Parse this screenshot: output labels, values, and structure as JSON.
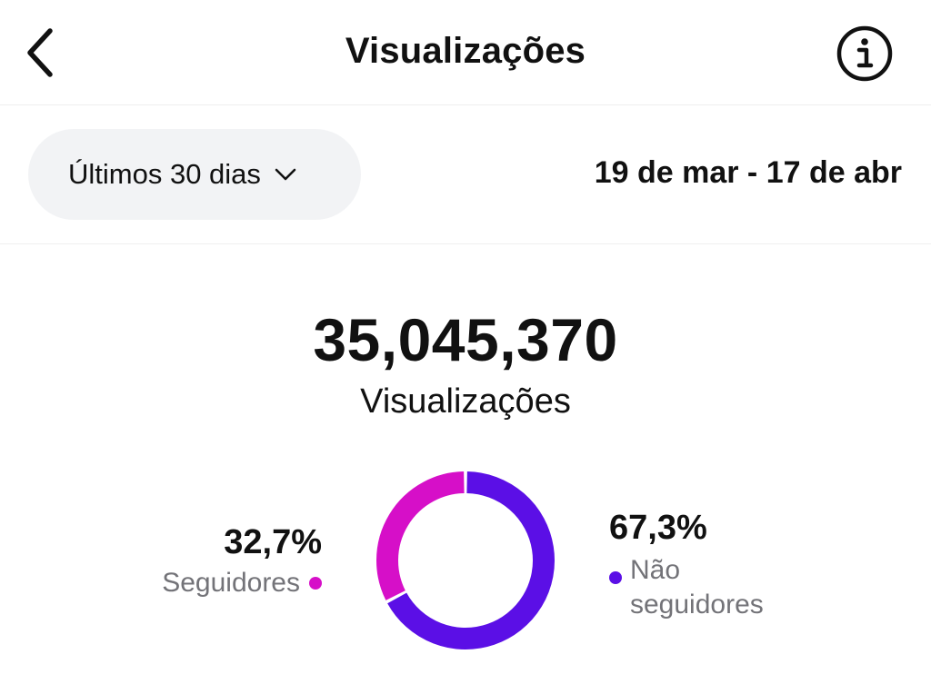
{
  "header": {
    "title": "Visualizações",
    "back_icon": "chevron-left-icon",
    "info_icon": "info-icon"
  },
  "filter": {
    "period_label": "Últimos 30 dias",
    "dropdown_icon": "chevron-down-icon",
    "date_range": "19 de mar - 17 de abr"
  },
  "summary": {
    "total_value": "35,045,370",
    "total_label": "Visualizações"
  },
  "chart_data": {
    "type": "pie",
    "style": "donut",
    "title": "",
    "categories": [
      "Seguidores",
      "Não seguidores"
    ],
    "values": [
      32.7,
      67.3
    ],
    "value_labels": [
      "32,7%",
      "67,3%"
    ],
    "colors": [
      "#d60fc8",
      "#5b0fe6"
    ]
  },
  "legend": {
    "followers": {
      "percent": "32,7%",
      "label": "Seguidores",
      "color": "#d60fc8"
    },
    "non_followers": {
      "percent": "67,3%",
      "label": "Não seguidores",
      "color": "#5b0fe6"
    }
  }
}
